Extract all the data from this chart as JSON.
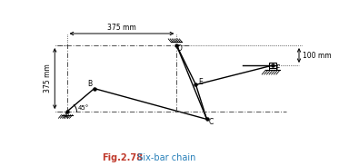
{
  "title": "Fig.2.78",
  "title_color": "#c0392b",
  "subtitle": "  Six-bar chain",
  "subtitle_color": "#2980b9",
  "bg_color": "#ffffff",
  "line_color": "#000000",
  "points": {
    "A": [
      0.55,
      0.32
    ],
    "B": [
      1.05,
      0.75
    ],
    "D": [
      2.55,
      1.55
    ],
    "E": [
      2.9,
      0.82
    ],
    "C": [
      3.1,
      0.18
    ],
    "F": [
      4.3,
      1.18
    ]
  },
  "angle_label": "45°",
  "fig_width": 3.84,
  "fig_height": 1.83,
  "xlim": [
    -0.35,
    5.5
  ],
  "ylim": [
    -0.38,
    2.3
  ]
}
